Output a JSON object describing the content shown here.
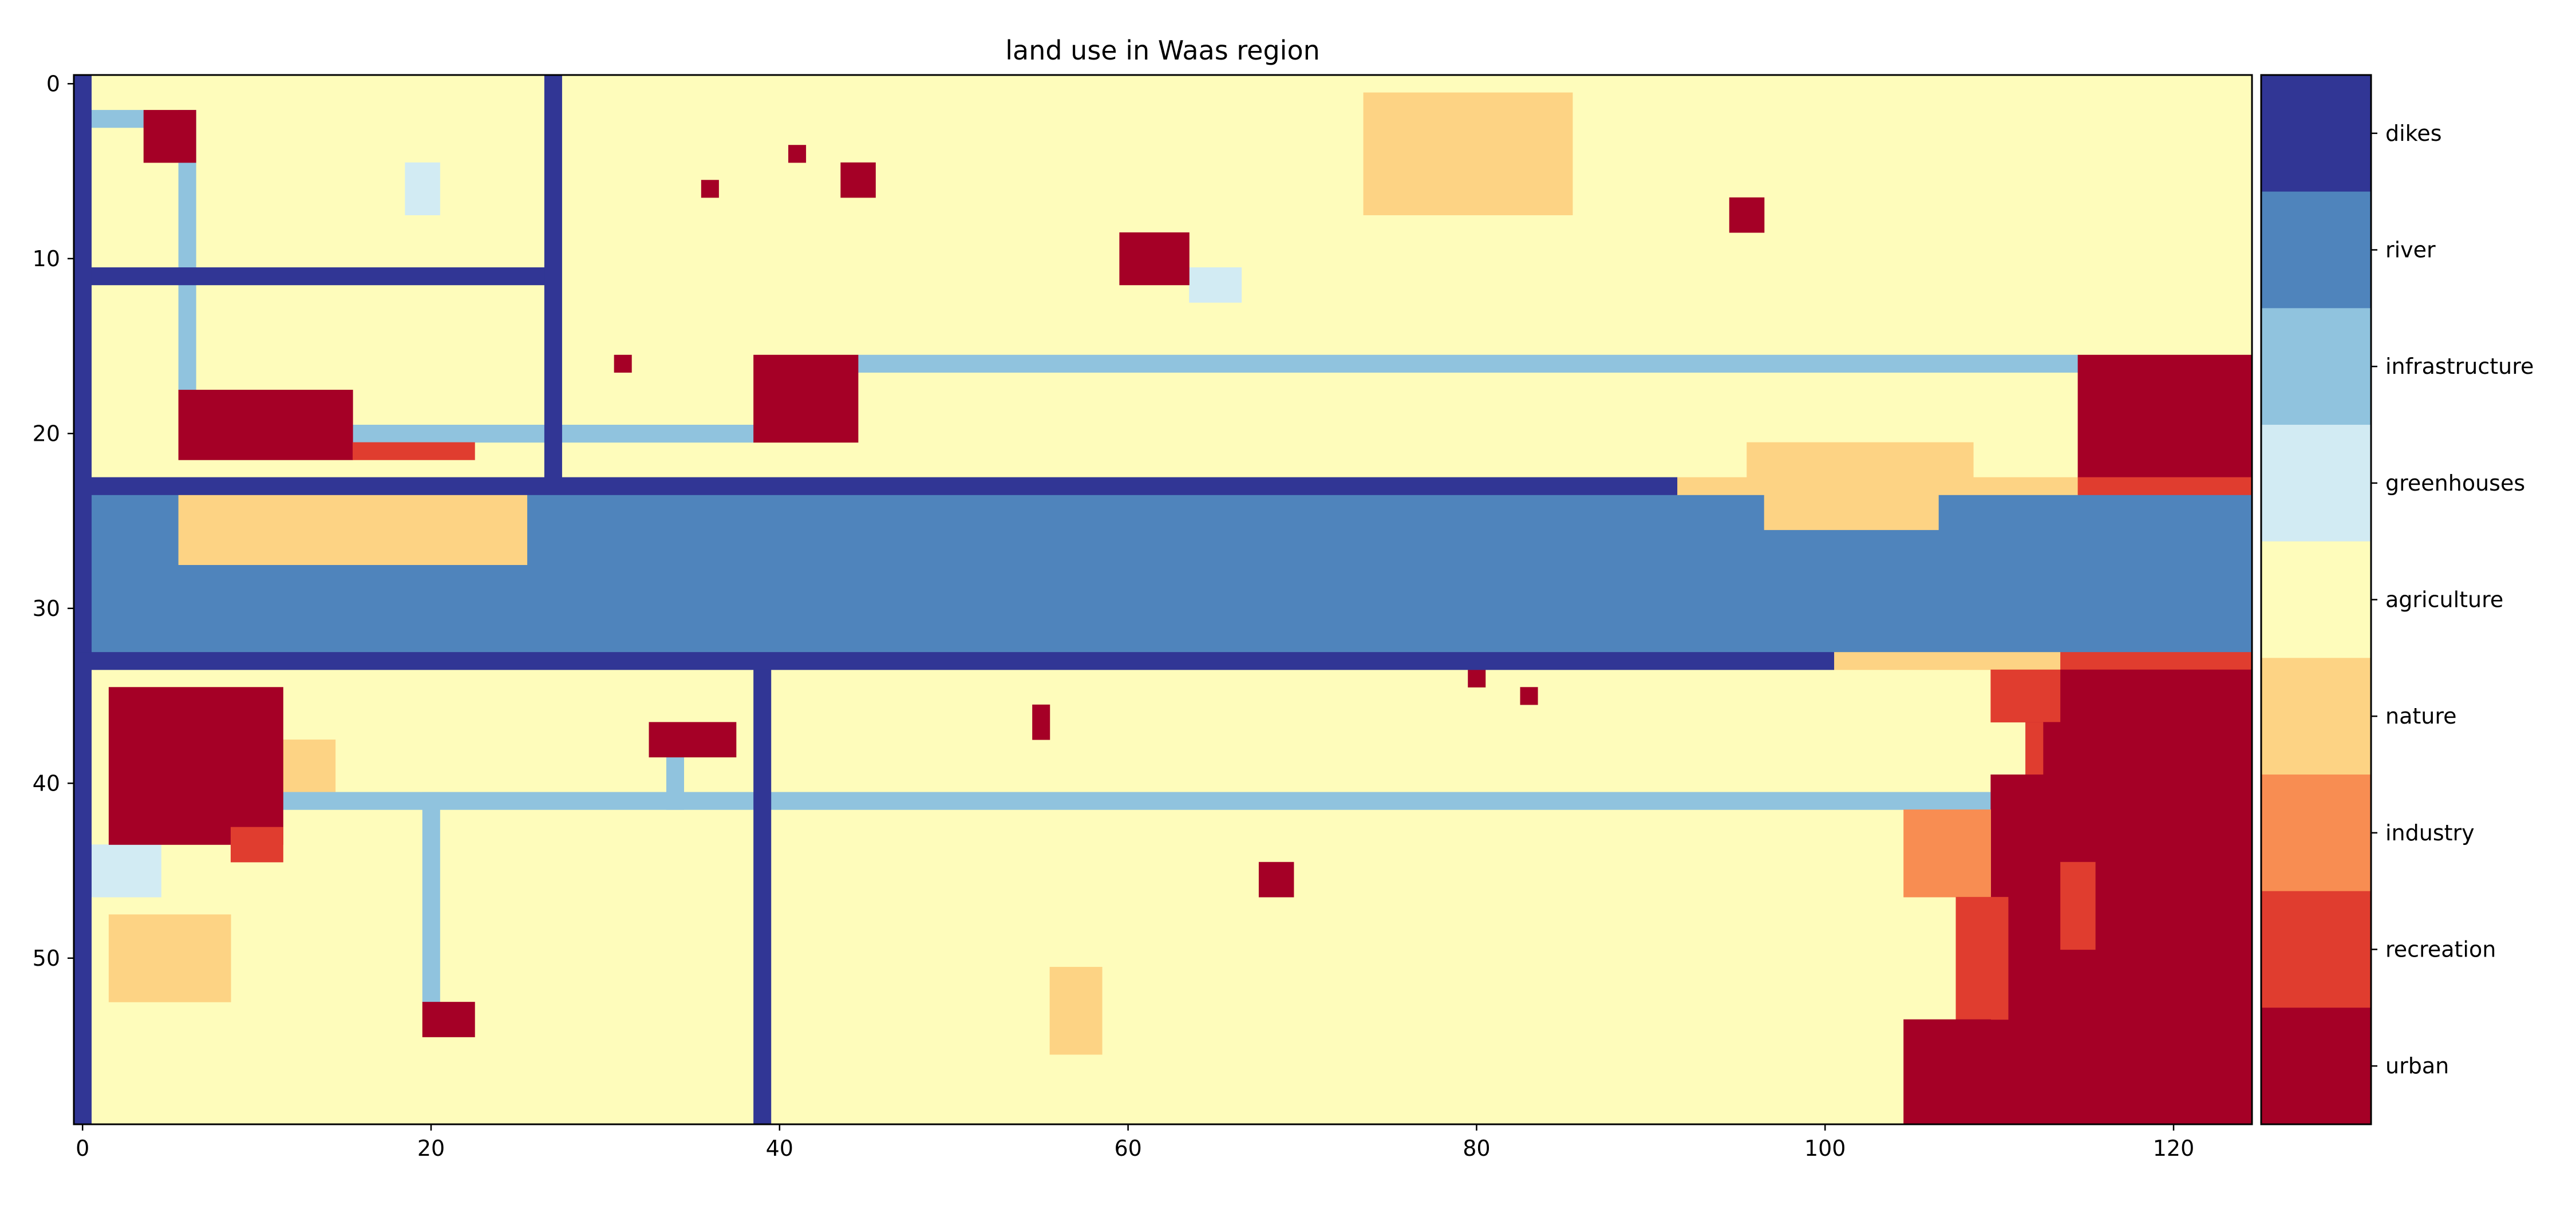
{
  "chart_data": {
    "type": "heatmap",
    "title": "land use in Waas region",
    "xlabel": "",
    "ylabel": "",
    "x_ticks": [
      0,
      20,
      40,
      60,
      80,
      100,
      120
    ],
    "y_ticks": [
      0,
      10,
      20,
      30,
      40,
      50
    ],
    "xlim": [
      -0.5,
      124.5
    ],
    "ylim": [
      59.5,
      -0.5
    ],
    "grid": false,
    "background_class": "agriculture",
    "categories": [
      {
        "name": "urban",
        "color": "#a50026"
      },
      {
        "name": "recreation",
        "color": "#e03d2f"
      },
      {
        "name": "industry",
        "color": "#f88d52"
      },
      {
        "name": "nature",
        "color": "#fdd384"
      },
      {
        "name": "agriculture",
        "color": "#fefcbb"
      },
      {
        "name": "greenhouses",
        "color": "#d2ebf3"
      },
      {
        "name": "infrastructure",
        "color": "#90c3de"
      },
      {
        "name": "river",
        "color": "#4f84bc"
      },
      {
        "name": "dikes",
        "color": "#313695"
      }
    ],
    "legend_order": [
      "dikes",
      "river",
      "infrastructure",
      "greenhouses",
      "agriculture",
      "nature",
      "industry",
      "recreation",
      "urban"
    ],
    "regions": [
      {
        "class": "river",
        "x": [
          0,
          124
        ],
        "y": [
          24,
          32
        ]
      },
      {
        "class": "nature",
        "x": [
          6,
          25
        ],
        "y": [
          24,
          27
        ]
      },
      {
        "class": "nature",
        "x": [
          97,
          106
        ],
        "y": [
          24,
          25
        ]
      },
      {
        "class": "nature",
        "x": [
          92,
          114
        ],
        "y": [
          23,
          23
        ]
      },
      {
        "class": "nature",
        "x": [
          96,
          108
        ],
        "y": [
          21,
          22
        ]
      },
      {
        "class": "nature",
        "x": [
          74,
          85
        ],
        "y": [
          1,
          7
        ]
      },
      {
        "class": "nature",
        "x": [
          101,
          113
        ],
        "y": [
          33,
          33
        ]
      },
      {
        "class": "nature",
        "x": [
          2,
          8
        ],
        "y": [
          48,
          52
        ]
      },
      {
        "class": "nature",
        "x": [
          56,
          58
        ],
        "y": [
          51,
          55
        ]
      },
      {
        "class": "nature",
        "x": [
          12,
          14
        ],
        "y": [
          38,
          40
        ]
      },
      {
        "class": "greenhouses",
        "x": [
          19,
          20
        ],
        "y": [
          5,
          7
        ]
      },
      {
        "class": "greenhouses",
        "x": [
          64,
          66
        ],
        "y": [
          11,
          12
        ]
      },
      {
        "class": "greenhouses",
        "x": [
          1,
          4
        ],
        "y": [
          44,
          46
        ]
      },
      {
        "class": "infrastructure",
        "x": [
          0,
          3
        ],
        "y": [
          2,
          2
        ]
      },
      {
        "class": "infrastructure",
        "x": [
          6,
          6
        ],
        "y": [
          2,
          17
        ]
      },
      {
        "class": "infrastructure",
        "x": [
          16,
          38
        ],
        "y": [
          20,
          20
        ]
      },
      {
        "class": "infrastructure",
        "x": [
          45,
          114
        ],
        "y": [
          16,
          16
        ]
      },
      {
        "class": "infrastructure",
        "x": [
          12,
          109
        ],
        "y": [
          41,
          41
        ]
      },
      {
        "class": "infrastructure",
        "x": [
          20,
          20
        ],
        "y": [
          41,
          52
        ]
      },
      {
        "class": "infrastructure",
        "x": [
          34,
          34
        ],
        "y": [
          39,
          41
        ]
      },
      {
        "class": "urban",
        "x": [
          4,
          6
        ],
        "y": [
          2,
          4
        ]
      },
      {
        "class": "urban",
        "x": [
          41,
          41
        ],
        "y": [
          4,
          4
        ]
      },
      {
        "class": "urban",
        "x": [
          36,
          36
        ],
        "y": [
          6,
          6
        ]
      },
      {
        "class": "urban",
        "x": [
          44,
          45
        ],
        "y": [
          5,
          6
        ]
      },
      {
        "class": "urban",
        "x": [
          95,
          96
        ],
        "y": [
          7,
          8
        ]
      },
      {
        "class": "urban",
        "x": [
          60,
          63
        ],
        "y": [
          9,
          11
        ]
      },
      {
        "class": "urban",
        "x": [
          31,
          31
        ],
        "y": [
          16,
          16
        ]
      },
      {
        "class": "urban",
        "x": [
          39,
          44
        ],
        "y": [
          16,
          20
        ]
      },
      {
        "class": "urban",
        "x": [
          6,
          15
        ],
        "y": [
          18,
          21
        ]
      },
      {
        "class": "recreation",
        "x": [
          16,
          22
        ],
        "y": [
          21,
          21
        ]
      },
      {
        "class": "urban",
        "x": [
          115,
          124
        ],
        "y": [
          16,
          22
        ]
      },
      {
        "class": "recreation",
        "x": [
          115,
          124
        ],
        "y": [
          23,
          23
        ]
      },
      {
        "class": "recreation",
        "x": [
          114,
          124
        ],
        "y": [
          33,
          33
        ]
      },
      {
        "class": "urban",
        "x": [
          80,
          80
        ],
        "y": [
          34,
          34
        ]
      },
      {
        "class": "urban",
        "x": [
          83,
          83
        ],
        "y": [
          35,
          35
        ]
      },
      {
        "class": "urban",
        "x": [
          55,
          55
        ],
        "y": [
          36,
          37
        ]
      },
      {
        "class": "urban",
        "x": [
          33,
          37
        ],
        "y": [
          37,
          38
        ]
      },
      {
        "class": "urban",
        "x": [
          2,
          11
        ],
        "y": [
          35,
          43
        ]
      },
      {
        "class": "recreation",
        "x": [
          9,
          11
        ],
        "y": [
          43,
          44
        ]
      },
      {
        "class": "urban",
        "x": [
          68,
          69
        ],
        "y": [
          45,
          46
        ]
      },
      {
        "class": "urban",
        "x": [
          20,
          22
        ],
        "y": [
          53,
          54
        ]
      },
      {
        "class": "recreation",
        "x": [
          110,
          113
        ],
        "y": [
          34,
          36
        ]
      },
      {
        "class": "urban",
        "x": [
          114,
          124
        ],
        "y": [
          34,
          59
        ]
      },
      {
        "class": "urban",
        "x": [
          112,
          113
        ],
        "y": [
          37,
          39
        ]
      },
      {
        "class": "recreation",
        "x": [
          112,
          112
        ],
        "y": [
          37,
          39
        ]
      },
      {
        "class": "urban",
        "x": [
          110,
          113
        ],
        "y": [
          40,
          59
        ]
      },
      {
        "class": "industry",
        "x": [
          105,
          109
        ],
        "y": [
          42,
          46
        ]
      },
      {
        "class": "recreation",
        "x": [
          108,
          110
        ],
        "y": [
          47,
          53
        ]
      },
      {
        "class": "recreation",
        "x": [
          114,
          115
        ],
        "y": [
          45,
          49
        ]
      },
      {
        "class": "urban",
        "x": [
          105,
          109
        ],
        "y": [
          54,
          59
        ]
      },
      {
        "class": "dikes",
        "x": [
          0,
          0
        ],
        "y": [
          0,
          59
        ]
      },
      {
        "class": "dikes",
        "x": [
          27,
          27
        ],
        "y": [
          0,
          22
        ]
      },
      {
        "class": "dikes",
        "x": [
          1,
          26
        ],
        "y": [
          11,
          11
        ]
      },
      {
        "class": "dikes",
        "x": [
          0,
          91
        ],
        "y": [
          23,
          23
        ]
      },
      {
        "class": "dikes",
        "x": [
          0,
          100
        ],
        "y": [
          33,
          33
        ]
      },
      {
        "class": "dikes",
        "x": [
          39,
          39
        ],
        "y": [
          34,
          59
        ]
      }
    ]
  }
}
